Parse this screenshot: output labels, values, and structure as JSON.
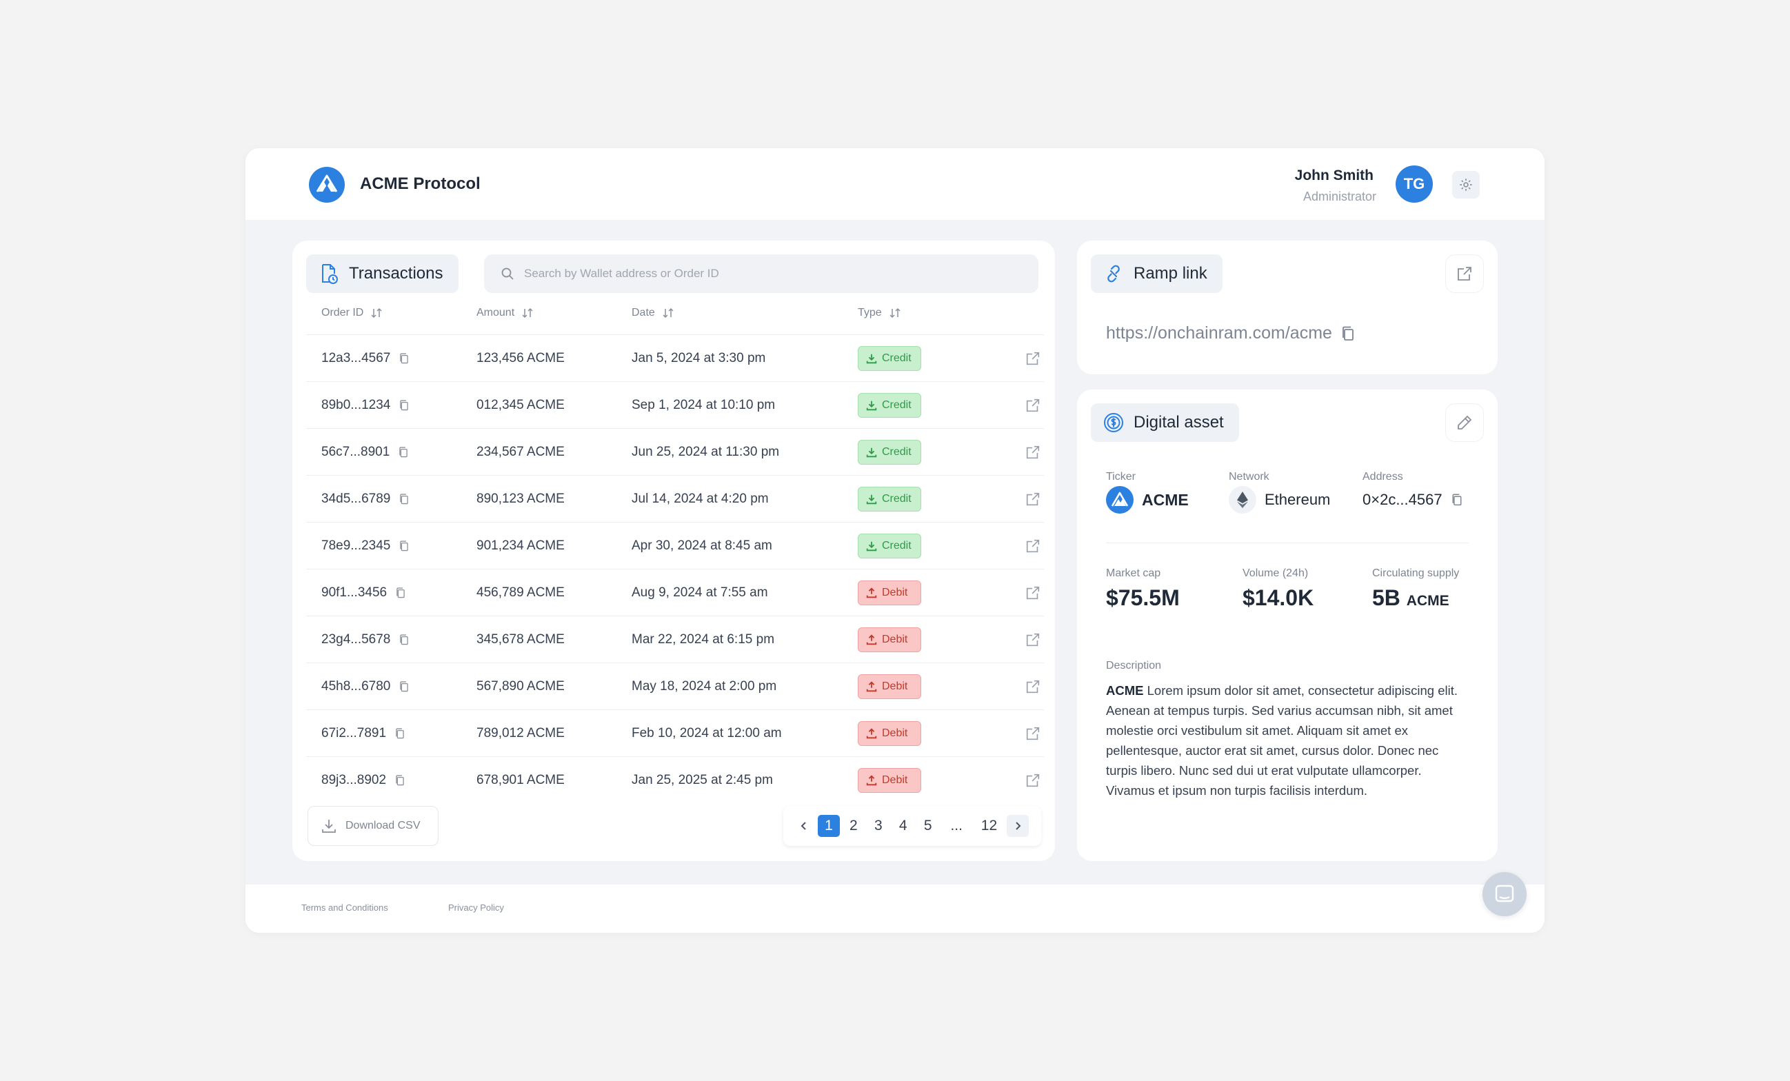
{
  "header": {
    "brand": "ACME Protocol",
    "user_name": "John Smith",
    "user_role": "Administrator",
    "avatar_initials": "TG"
  },
  "transactions": {
    "title": "Transactions",
    "search_placeholder": "Search by Wallet address or Order ID",
    "columns": {
      "order_id": "Order ID",
      "amount": "Amount",
      "date": "Date",
      "type": "Type"
    },
    "rows": [
      {
        "id": "12a3...4567",
        "amount": "123,456 ACME",
        "date": "Jan 5, 2024 at 3:30 pm",
        "type": "Credit"
      },
      {
        "id": "89b0...1234",
        "amount": "012,345 ACME",
        "date": "Sep 1, 2024 at 10:10 pm",
        "type": "Credit"
      },
      {
        "id": "56c7...8901",
        "amount": "234,567 ACME",
        "date": "Jun 25, 2024 at 11:30 pm",
        "type": "Credit"
      },
      {
        "id": "34d5...6789",
        "amount": "890,123 ACME",
        "date": "Jul 14, 2024 at 4:20 pm",
        "type": "Credit"
      },
      {
        "id": "78e9...2345",
        "amount": "901,234 ACME",
        "date": "Apr 30, 2024 at 8:45 am",
        "type": "Credit"
      },
      {
        "id": "90f1...3456",
        "amount": "456,789 ACME",
        "date": "Aug 9, 2024 at 7:55 am",
        "type": "Debit"
      },
      {
        "id": "23g4...5678",
        "amount": "345,678 ACME",
        "date": "Mar 22, 2024 at 6:15 pm",
        "type": "Debit"
      },
      {
        "id": "45h8...6780",
        "amount": "567,890 ACME",
        "date": "May 18, 2024 at 2:00 pm",
        "type": "Debit"
      },
      {
        "id": "67i2...7891",
        "amount": "789,012 ACME",
        "date": "Feb 10, 2024 at 12:00 am",
        "type": "Debit"
      },
      {
        "id": "89j3...8902",
        "amount": "678,901 ACME",
        "date": "Jan 25, 2025 at 2:45 pm",
        "type": "Debit"
      }
    ],
    "download_label": "Download CSV",
    "pagination": {
      "pages": [
        "1",
        "2",
        "3",
        "4",
        "5",
        "...",
        "12"
      ],
      "current": "1"
    }
  },
  "ramp": {
    "title": "Ramp link",
    "url": "https://onchainram.com/acme"
  },
  "asset": {
    "title": "Digital asset",
    "ticker_label": "Ticker",
    "ticker": "ACME",
    "network_label": "Network",
    "network": "Ethereum",
    "address_label": "Address",
    "address": "0×2c...4567",
    "market_cap_label": "Market cap",
    "market_cap": "$75.5M",
    "volume_label": "Volume (24h)",
    "volume": "$14.0K",
    "supply_label": "Circulating supply",
    "supply_value": "5B",
    "supply_unit": "ACME",
    "description_label": "Description",
    "description_lead": "ACME",
    "description_body": " Lorem ipsum dolor sit amet, consectetur adipiscing elit. Aenean at tempus turpis. Sed varius accumsan nibh, sit amet molestie orci vestibulum sit amet. Aliquam sit amet ex pellentesque, auctor erat sit amet, cursus dolor. Donec nec turpis libero. Nunc sed dui ut erat vulputate ullamcorper. Vivamus et ipsum non turpis facilisis interdum."
  },
  "footer": {
    "terms": "Terms and Conditions",
    "privacy": "Privacy Policy"
  },
  "colors": {
    "primary": "#2b80e0",
    "credit_bg": "#c8f0cf",
    "credit_text": "#2f9a4a",
    "debit_bg": "#fbc6c6",
    "debit_text": "#c0392b"
  }
}
